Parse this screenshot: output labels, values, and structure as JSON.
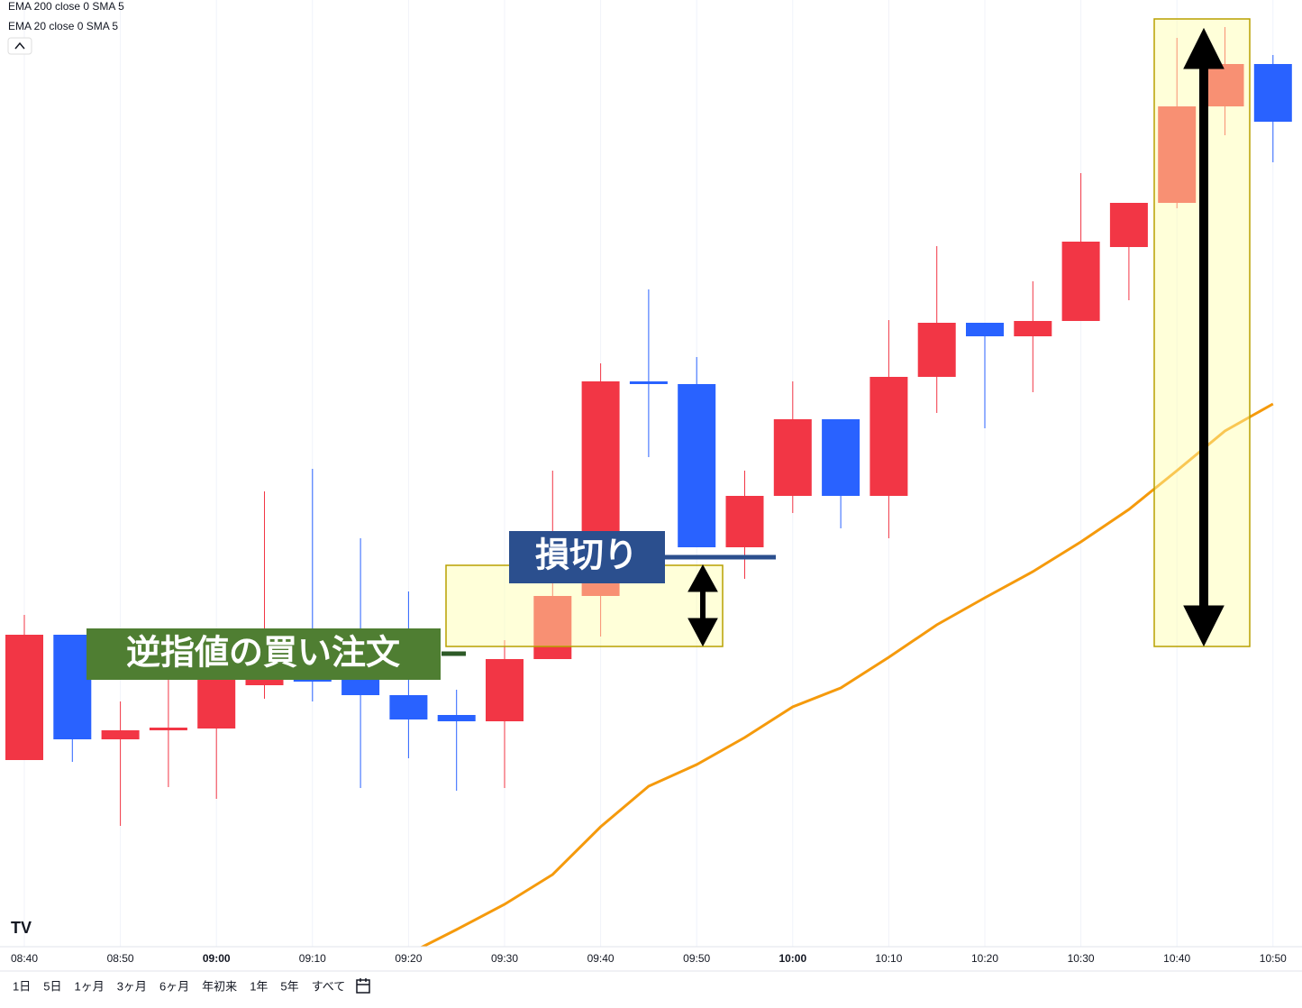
{
  "chart_data": {
    "type": "candlestick",
    "indicators": [
      "EMA 200 close 0 SMA 5",
      "EMA 20 close 0 SMA 5"
    ],
    "categories": [
      "08:40",
      null,
      "08:50",
      null,
      "09:00",
      null,
      "09:10",
      null,
      "09:20",
      null,
      "09:30",
      null,
      "09:40",
      null,
      "09:50",
      null,
      "10:00",
      null,
      "10:10",
      null,
      "10:20",
      null,
      "10:30",
      null,
      "10:40",
      null,
      "10:50"
    ],
    "bold_labels": [
      4,
      16
    ],
    "open": [
      207,
      346,
      230,
      240,
      242,
      290,
      310,
      298,
      279,
      257,
      250,
      319,
      389,
      627,
      624,
      443,
      500,
      585,
      500,
      632,
      692,
      677,
      694,
      776,
      825,
      932,
      979
    ],
    "high": [
      368,
      346,
      272,
      298,
      350,
      505,
      530,
      453,
      394,
      285,
      340,
      528,
      647,
      729,
      654,
      528,
      627,
      585,
      695,
      777,
      692,
      738,
      858,
      825,
      1008,
      1020,
      989
    ],
    "low": [
      207,
      205,
      134,
      177,
      164,
      275,
      272,
      176,
      209,
      173,
      176,
      319,
      344,
      543,
      443,
      408,
      481,
      464,
      453,
      592,
      575,
      615,
      694,
      717,
      819,
      900,
      870
    ],
    "close": [
      346,
      230,
      240,
      243,
      300,
      310,
      294,
      279,
      252,
      250,
      319,
      389,
      627,
      624,
      443,
      500,
      585,
      500,
      632,
      692,
      677,
      694,
      782,
      825,
      932,
      979,
      915
    ],
    "up_color": "#f23645",
    "down_color": "#2962ff",
    "ema": {
      "color": "#f59a0c",
      "values": [
        null,
        null,
        null,
        null,
        null,
        null,
        null,
        null,
        -8,
        19,
        47,
        80,
        133,
        178,
        202,
        232,
        266,
        287,
        321,
        357,
        387,
        416,
        449,
        485,
        528,
        572,
        602
      ]
    },
    "ylim": [
      0,
      1050
    ],
    "annotations": [
      "逆指値の買い注文",
      "損切り"
    ],
    "toolbar": [
      "1日",
      "5日",
      "1ヶ月",
      "3ヶ月",
      "6ヶ月",
      "年初来",
      "1年",
      "5年",
      "すべて"
    ]
  }
}
